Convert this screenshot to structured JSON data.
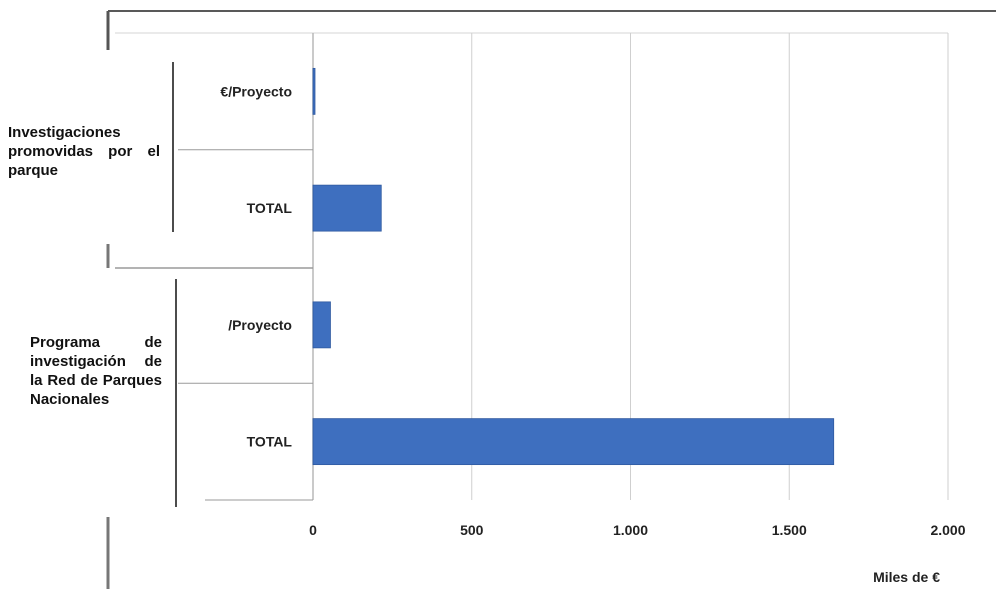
{
  "chart_data": {
    "type": "bar",
    "orientation": "horizontal",
    "groups": [
      {
        "label": "Investigaciones promovidas por el parque",
        "bars": [
          {
            "label": "€/Proyecto",
            "value": 4
          },
          {
            "label": "TOTAL",
            "value": 215
          }
        ]
      },
      {
        "label": "Programa de investigación de la Red de Parques Nacionales",
        "bars": [
          {
            "label": "/Proyecto",
            "value": 55
          },
          {
            "label": "TOTAL",
            "value": 1640
          }
        ]
      }
    ],
    "xlim": [
      0,
      2000
    ],
    "xticks": [
      0,
      500,
      1000,
      1500,
      2000
    ],
    "xtick_labels": [
      "0",
      "500",
      "1.000",
      "1.500",
      "2.000"
    ],
    "xlabel": "Miles de €",
    "grid": "vertical",
    "bar_color": "#3e6fbf",
    "legend": "none"
  }
}
